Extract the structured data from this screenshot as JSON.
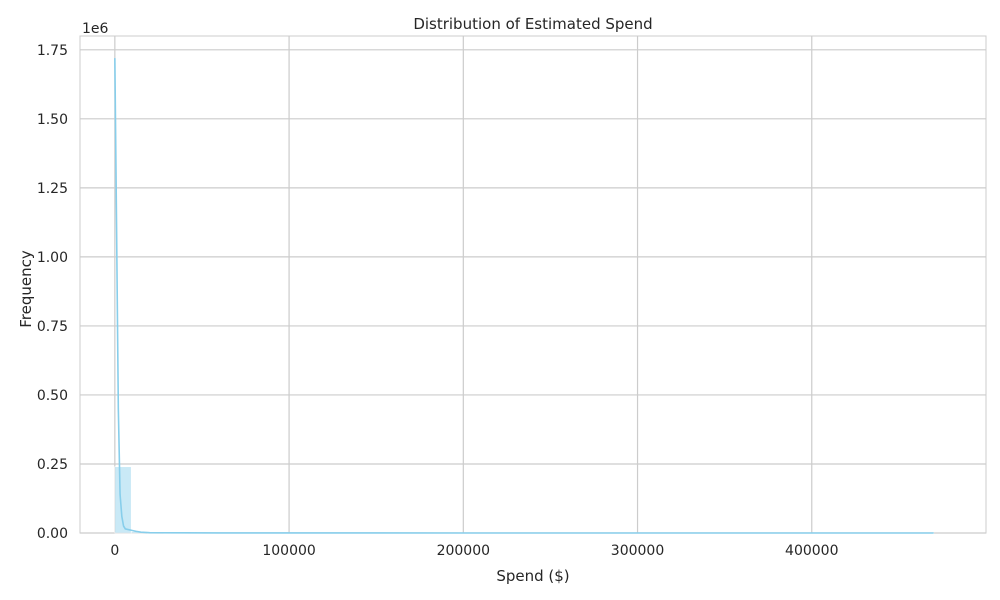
{
  "chart_data": {
    "type": "bar",
    "title": "Distribution of Estimated Spend",
    "xlabel": "Spend ($)",
    "ylabel": "Frequency",
    "y_offset_label": "1e6",
    "xlim": [
      -20000,
      500000
    ],
    "ylim": [
      0,
      1800000
    ],
    "x_ticks": [
      0,
      100000,
      200000,
      300000,
      400000
    ],
    "x_tick_labels": [
      "0",
      "100000",
      "200000",
      "300000",
      "400000"
    ],
    "y_ticks": [
      0,
      250000,
      500000,
      750000,
      1000000,
      1250000,
      1500000,
      1750000
    ],
    "y_tick_labels": [
      "0.00",
      "0.25",
      "0.50",
      "0.75",
      "1.00",
      "1.25",
      "1.50",
      "1.75"
    ],
    "grid": true,
    "bins": [
      {
        "x0": 0,
        "x1": 9400,
        "count": 240000
      },
      {
        "x0": 9400,
        "x1": 18800,
        "count": 5000
      },
      {
        "x0": 18800,
        "x1": 28200,
        "count": 1500
      },
      {
        "x0": 28200,
        "x1": 37600,
        "count": 800
      },
      {
        "x0": 37600,
        "x1": 47000,
        "count": 600
      },
      {
        "x0": 47000,
        "x1": 56400,
        "count": 500
      },
      {
        "x0": 56400,
        "x1": 470000,
        "count": 200
      }
    ],
    "kde": {
      "x": [
        0,
        1000,
        2000,
        3000,
        4000,
        5000,
        6000,
        8000,
        10000,
        12000,
        15000,
        20000,
        40000,
        60000,
        100000,
        200000,
        300000,
        400000,
        470000
      ],
      "y": [
        1720000,
        1100000,
        450000,
        140000,
        60000,
        25000,
        15000,
        12000,
        9000,
        6000,
        3000,
        1000,
        500,
        300,
        100,
        50,
        30,
        20,
        10
      ]
    },
    "colors": {
      "bar": "#87ceeb",
      "line": "#87ceeb",
      "grid": "#cccccc",
      "axes_edge": "#cccccc"
    }
  }
}
